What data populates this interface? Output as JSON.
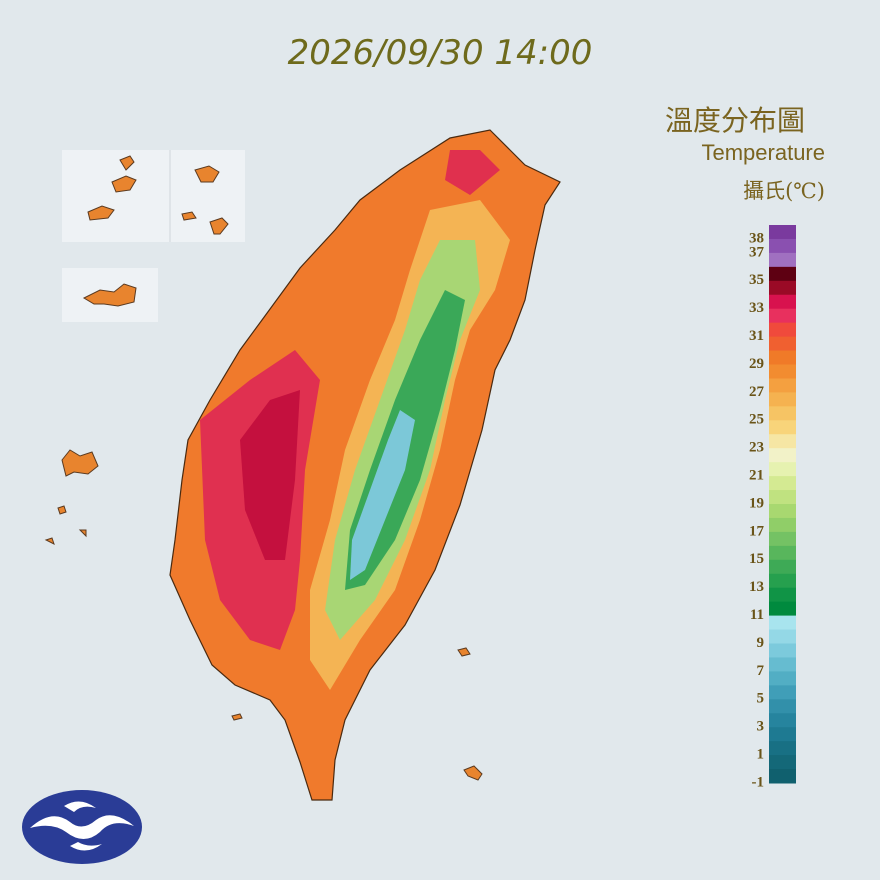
{
  "timestamp": "2026/09/30 14:00",
  "legend": {
    "title": "溫度分布圖",
    "subtitle": "Temperature",
    "unit": "攝氏(℃)",
    "ticks": [
      38,
      37,
      35,
      33,
      31,
      29,
      27,
      25,
      23,
      21,
      19,
      17,
      15,
      13,
      11,
      9,
      7,
      5,
      3,
      1,
      -1
    ],
    "colors": [
      "#7a3a9e",
      "#8a50b0",
      "#a070c0",
      "#5e0012",
      "#9a0a26",
      "#d8124e",
      "#e8305e",
      "#f04a3c",
      "#f06030",
      "#f07a28",
      "#f28c30",
      "#f4a040",
      "#f5b250",
      "#f6c464",
      "#f8d47a",
      "#f6e6a4",
      "#f2f2c8",
      "#e6f2b0",
      "#d4ea92",
      "#c0e280",
      "#a8d870",
      "#90ce68",
      "#74c264",
      "#58b65c",
      "#3eaa56",
      "#26a04e",
      "#109446",
      "#008a3e",
      "#a8e4ee",
      "#94d8e6",
      "#7ccadc",
      "#66bcd0",
      "#52aec4",
      "#409eb8",
      "#3290aa",
      "#26849e",
      "#1e7a92",
      "#187084",
      "#146878",
      "#10606e"
    ]
  }
}
